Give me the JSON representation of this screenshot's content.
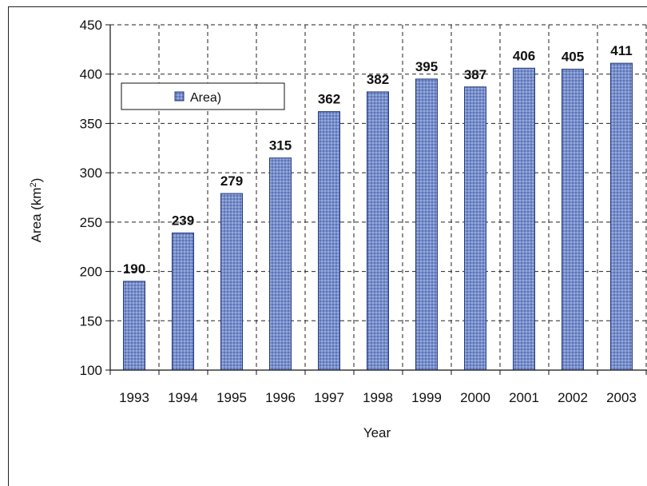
{
  "chart_data": {
    "type": "bar",
    "categories": [
      "1993",
      "1994",
      "1995",
      "1996",
      "1997",
      "1998",
      "1999",
      "2000",
      "2001",
      "2002",
      "2003"
    ],
    "series": [
      {
        "name": "Area)",
        "values": [
          190,
          239,
          279,
          315,
          362,
          382,
          395,
          387,
          406,
          405,
          411
        ]
      }
    ],
    "xlabel": "Year",
    "ylabel_main": "Area (km",
    "ylabel_sup": "2",
    "ylabel_end": ")",
    "ylim": [
      100,
      450
    ],
    "yticks": [
      100,
      150,
      200,
      250,
      300,
      350,
      400,
      450
    ],
    "grid": "dashed",
    "legend_position": "top-left",
    "bar_color": "#6e86c6",
    "bar_edge_color": "#243a7a"
  }
}
